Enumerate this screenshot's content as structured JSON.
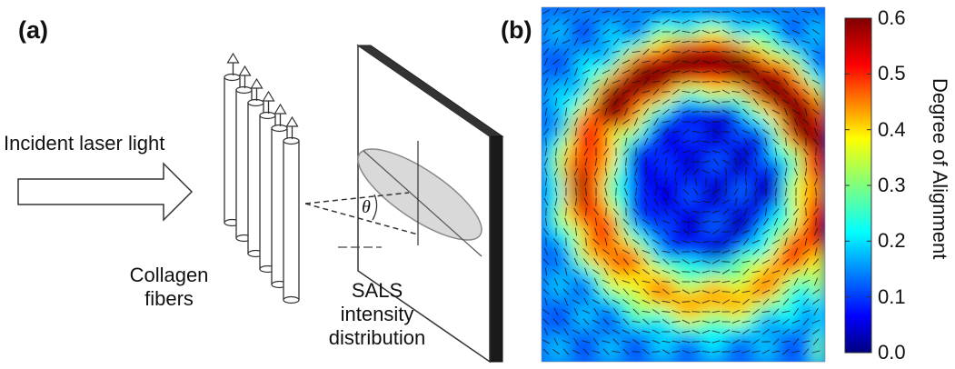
{
  "panel_a": {
    "label": "(a)",
    "incident_label": "Incident laser light",
    "fibers_label_line1": "Collagen",
    "fibers_label_line2": "fibers",
    "sals_line1": "SALS",
    "sals_line2": "intensity",
    "sals_line3": "distribution",
    "angle_symbol": "θ"
  },
  "panel_b": {
    "label": "(b)",
    "colorbar_title": "Degree of Alignment",
    "colorbar_ticks": [
      "0.6",
      "0.5",
      "0.4",
      "0.3",
      "0.2",
      "0.1",
      "0.0"
    ],
    "colorbar_range": [
      0.0,
      0.6
    ],
    "colormap": [
      "#00007f",
      "#0000ff",
      "#007fff",
      "#00ffff",
      "#7fff7f",
      "#ffff00",
      "#ff7f00",
      "#ff0000",
      "#7f0000"
    ]
  }
}
